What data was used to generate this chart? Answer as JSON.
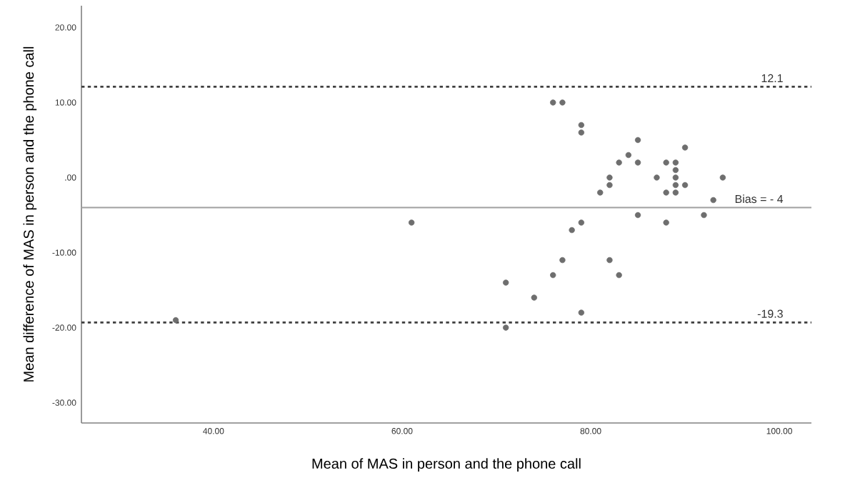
{
  "chart_data": {
    "type": "scatter",
    "xlabel": "Mean of MAS in person and the phone call",
    "ylabel": "Mean difference of MAS in person and the phone call",
    "x": [
      36,
      61,
      71,
      71,
      74,
      76,
      77,
      76,
      77,
      78,
      79,
      79,
      79,
      79,
      81,
      82,
      82,
      82,
      83,
      83,
      84,
      85,
      85,
      85,
      87,
      88,
      88,
      88,
      89,
      89,
      89,
      89,
      89,
      90,
      90,
      92,
      93,
      94
    ],
    "values": [
      -19,
      -6,
      -14,
      -20,
      -16,
      10,
      10,
      -13,
      -11,
      -7,
      7,
      6,
      -6,
      -18,
      -2,
      0,
      -1,
      -11,
      2,
      -13,
      3,
      5,
      2,
      -5,
      0,
      2,
      -2,
      -6,
      2,
      1,
      0,
      -1,
      -2,
      4,
      -1,
      -5,
      -3,
      0
    ],
    "color": "#6e6e6e",
    "marker": "circle",
    "xlim": [
      26,
      103.4
    ],
    "ylim": [
      -32.7,
      22.9
    ],
    "xticks": [
      {
        "value": 40,
        "label": "40.00"
      },
      {
        "value": 60,
        "label": "60.00"
      },
      {
        "value": 80,
        "label": "80.00"
      },
      {
        "value": 100,
        "label": "100.00"
      }
    ],
    "yticks": [
      {
        "value": -30,
        "label": "-30.00"
      },
      {
        "value": -20,
        "label": "-20.00"
      },
      {
        "value": -10,
        "label": "-10.00"
      },
      {
        "value": 0,
        "label": ".00"
      },
      {
        "value": 10,
        "label": "10.00"
      },
      {
        "value": 20,
        "label": "20.00"
      }
    ],
    "ref_lines": [
      {
        "axis": "y",
        "value": 12.1,
        "label": "12.1",
        "color": "#404040",
        "line_style": "dotted"
      },
      {
        "axis": "y",
        "value": -4,
        "label": "Bias = - 4",
        "color": "#a0a0a0",
        "line_style": "solid"
      },
      {
        "axis": "y",
        "value": -19.3,
        "label": "-19.3",
        "color": "#404040",
        "line_style": "dotted"
      }
    ],
    "grid": false
  }
}
